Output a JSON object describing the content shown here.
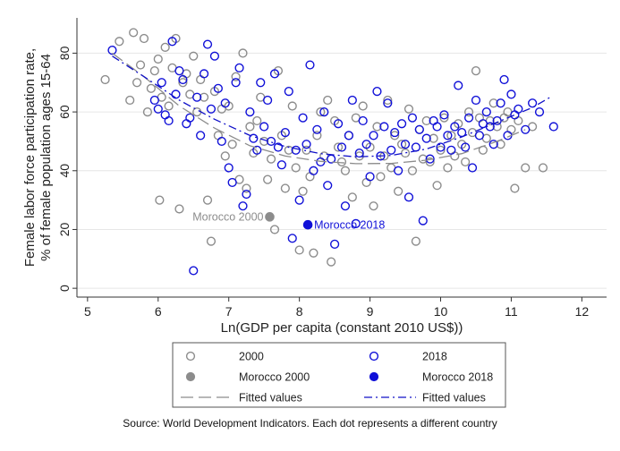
{
  "chart_data": {
    "type": "scatter",
    "title": "",
    "xlabel": "Ln(GDP per capita (constant 2010 US$))",
    "ylabel_line1": "Female labor force participation rate,",
    "ylabel_line2": "% of female population ages 15-64",
    "xlim": [
      4.85,
      12.35
    ],
    "ylim": [
      -3,
      92
    ],
    "xticks": [
      5,
      6,
      7,
      8,
      9,
      10,
      11,
      12
    ],
    "yticks": [
      0,
      20,
      40,
      60,
      80
    ],
    "grid": "horizontal",
    "legend_position": "bottom",
    "colors": {
      "series_2000": "#8c8c8c",
      "series_2018": "#1010d8",
      "fit_2000": "#8c8c8c",
      "fit_2018": "#1010c8"
    },
    "series": [
      {
        "name": "2000",
        "marker": "hollow-circle",
        "points": [
          [
            5.25,
            71
          ],
          [
            5.45,
            84
          ],
          [
            5.6,
            64
          ],
          [
            5.65,
            87
          ],
          [
            5.7,
            70
          ],
          [
            5.75,
            76
          ],
          [
            5.8,
            85
          ],
          [
            5.85,
            60
          ],
          [
            5.9,
            68
          ],
          [
            5.95,
            74
          ],
          [
            6.0,
            78
          ],
          [
            6.02,
            30
          ],
          [
            6.05,
            65
          ],
          [
            6.1,
            82
          ],
          [
            6.15,
            62
          ],
          [
            6.2,
            75
          ],
          [
            6.25,
            85
          ],
          [
            6.3,
            27
          ],
          [
            6.35,
            70
          ],
          [
            6.4,
            73
          ],
          [
            6.45,
            66
          ],
          [
            6.5,
            79
          ],
          [
            6.55,
            60
          ],
          [
            6.6,
            71
          ],
          [
            6.65,
            65
          ],
          [
            6.7,
            30
          ],
          [
            6.75,
            16
          ],
          [
            6.8,
            67
          ],
          [
            6.85,
            52
          ],
          [
            6.9,
            61
          ],
          [
            6.95,
            45
          ],
          [
            7.0,
            62
          ],
          [
            7.05,
            49
          ],
          [
            7.1,
            72
          ],
          [
            7.15,
            37
          ],
          [
            7.2,
            80
          ],
          [
            7.25,
            34
          ],
          [
            7.3,
            55
          ],
          [
            7.35,
            46
          ],
          [
            7.4,
            57
          ],
          [
            7.45,
            65
          ],
          [
            7.5,
            50
          ],
          [
            7.55,
            37
          ],
          [
            7.6,
            44
          ],
          [
            7.65,
            20
          ],
          [
            7.7,
            74
          ],
          [
            7.75,
            52
          ],
          [
            7.8,
            34
          ],
          [
            7.85,
            47
          ],
          [
            7.9,
            62
          ],
          [
            7.95,
            41
          ],
          [
            8.0,
            13
          ],
          [
            8.05,
            33
          ],
          [
            8.1,
            47
          ],
          [
            8.15,
            38
          ],
          [
            8.2,
            12
          ],
          [
            8.25,
            52
          ],
          [
            8.3,
            60
          ],
          [
            8.35,
            45
          ],
          [
            8.4,
            64
          ],
          [
            8.45,
            9
          ],
          [
            8.5,
            57
          ],
          [
            8.55,
            48
          ],
          [
            8.6,
            43
          ],
          [
            8.65,
            40
          ],
          [
            8.7,
            52
          ],
          [
            8.75,
            31
          ],
          [
            8.8,
            58
          ],
          [
            8.85,
            45
          ],
          [
            8.9,
            62
          ],
          [
            8.95,
            36
          ],
          [
            9.0,
            48
          ],
          [
            9.05,
            28
          ],
          [
            9.1,
            55
          ],
          [
            9.15,
            38
          ],
          [
            9.2,
            45
          ],
          [
            9.25,
            64
          ],
          [
            9.3,
            41
          ],
          [
            9.35,
            52
          ],
          [
            9.4,
            33
          ],
          [
            9.45,
            49
          ],
          [
            9.5,
            46
          ],
          [
            9.55,
            61
          ],
          [
            9.6,
            40
          ],
          [
            9.65,
            16
          ],
          [
            9.7,
            54
          ],
          [
            9.75,
            44
          ],
          [
            9.8,
            57
          ],
          [
            9.85,
            43
          ],
          [
            9.9,
            51
          ],
          [
            9.95,
            35
          ],
          [
            10.0,
            47
          ],
          [
            10.05,
            58
          ],
          [
            10.1,
            41
          ],
          [
            10.15,
            52
          ],
          [
            10.2,
            45
          ],
          [
            10.25,
            56
          ],
          [
            10.3,
            49
          ],
          [
            10.35,
            43
          ],
          [
            10.4,
            60
          ],
          [
            10.45,
            53
          ],
          [
            10.5,
            74
          ],
          [
            10.55,
            58
          ],
          [
            10.6,
            47
          ],
          [
            10.65,
            51
          ],
          [
            10.7,
            57
          ],
          [
            10.75,
            63
          ],
          [
            10.8,
            55
          ],
          [
            10.85,
            49
          ],
          [
            10.9,
            58
          ],
          [
            10.95,
            60
          ],
          [
            11.0,
            54
          ],
          [
            11.05,
            34
          ],
          [
            11.1,
            57
          ],
          [
            11.2,
            41
          ],
          [
            11.3,
            55
          ],
          [
            11.45,
            41
          ]
        ]
      },
      {
        "name": "2018",
        "marker": "hollow-circle",
        "points": [
          [
            5.35,
            81
          ],
          [
            5.95,
            64
          ],
          [
            6.0,
            61
          ],
          [
            6.05,
            70
          ],
          [
            6.1,
            59
          ],
          [
            6.15,
            57
          ],
          [
            6.2,
            84
          ],
          [
            6.25,
            66
          ],
          [
            6.3,
            74
          ],
          [
            6.35,
            71
          ],
          [
            6.4,
            56
          ],
          [
            6.45,
            58
          ],
          [
            6.5,
            6
          ],
          [
            6.55,
            65
          ],
          [
            6.6,
            52
          ],
          [
            6.65,
            73
          ],
          [
            6.7,
            83
          ],
          [
            6.75,
            61
          ],
          [
            6.8,
            79
          ],
          [
            6.85,
            68
          ],
          [
            6.9,
            50
          ],
          [
            6.95,
            63
          ],
          [
            7.0,
            41
          ],
          [
            7.05,
            36
          ],
          [
            7.1,
            70
          ],
          [
            7.15,
            75
          ],
          [
            7.2,
            28
          ],
          [
            7.25,
            32
          ],
          [
            7.3,
            60
          ],
          [
            7.35,
            51
          ],
          [
            7.4,
            47
          ],
          [
            7.45,
            70
          ],
          [
            7.5,
            55
          ],
          [
            7.55,
            64
          ],
          [
            7.6,
            50
          ],
          [
            7.65,
            73
          ],
          [
            7.7,
            48
          ],
          [
            7.75,
            42
          ],
          [
            7.8,
            53
          ],
          [
            7.85,
            67
          ],
          [
            7.9,
            17
          ],
          [
            7.95,
            47
          ],
          [
            8.0,
            30
          ],
          [
            8.05,
            58
          ],
          [
            8.1,
            49
          ],
          [
            8.15,
            76
          ],
          [
            8.2,
            40
          ],
          [
            8.25,
            54
          ],
          [
            8.3,
            43
          ],
          [
            8.35,
            60
          ],
          [
            8.4,
            35
          ],
          [
            8.45,
            44
          ],
          [
            8.5,
            15
          ],
          [
            8.55,
            56
          ],
          [
            8.6,
            48
          ],
          [
            8.65,
            28
          ],
          [
            8.7,
            52
          ],
          [
            8.75,
            64
          ],
          [
            8.8,
            22
          ],
          [
            8.85,
            46
          ],
          [
            8.9,
            57
          ],
          [
            8.95,
            49
          ],
          [
            9.0,
            38
          ],
          [
            9.05,
            52
          ],
          [
            9.1,
            67
          ],
          [
            9.15,
            45
          ],
          [
            9.2,
            55
          ],
          [
            9.25,
            63
          ],
          [
            9.3,
            47
          ],
          [
            9.35,
            53
          ],
          [
            9.4,
            40
          ],
          [
            9.45,
            56
          ],
          [
            9.5,
            49
          ],
          [
            9.55,
            31
          ],
          [
            9.6,
            58
          ],
          [
            9.65,
            48
          ],
          [
            9.7,
            54
          ],
          [
            9.75,
            23
          ],
          [
            9.8,
            51
          ],
          [
            9.85,
            44
          ],
          [
            9.9,
            57
          ],
          [
            9.95,
            55
          ],
          [
            10.0,
            48
          ],
          [
            10.05,
            59
          ],
          [
            10.1,
            52
          ],
          [
            10.15,
            47
          ],
          [
            10.2,
            55
          ],
          [
            10.25,
            69
          ],
          [
            10.3,
            53
          ],
          [
            10.35,
            48
          ],
          [
            10.4,
            58
          ],
          [
            10.45,
            41
          ],
          [
            10.5,
            64
          ],
          [
            10.55,
            52
          ],
          [
            10.6,
            56
          ],
          [
            10.65,
            60
          ],
          [
            10.7,
            55
          ],
          [
            10.75,
            49
          ],
          [
            10.8,
            57
          ],
          [
            10.85,
            63
          ],
          [
            10.9,
            71
          ],
          [
            10.95,
            52
          ],
          [
            11.0,
            66
          ],
          [
            11.05,
            59
          ],
          [
            11.1,
            61
          ],
          [
            11.2,
            54
          ],
          [
            11.3,
            63
          ],
          [
            11.4,
            60
          ],
          [
            11.6,
            55
          ]
        ]
      },
      {
        "name": "Morocco 2000",
        "marker": "filled-circle",
        "points": [
          [
            7.58,
            24.3
          ]
        ]
      },
      {
        "name": "Morocco 2018",
        "marker": "filled-circle",
        "points": [
          [
            8.12,
            21.6
          ]
        ]
      },
      {
        "name": "Fitted values",
        "line": "long-dash",
        "color_key": "fit_2000",
        "points": [
          [
            5.35,
            80
          ],
          [
            5.8,
            72
          ],
          [
            6.3,
            62
          ],
          [
            6.8,
            54.5
          ],
          [
            7.3,
            48.5
          ],
          [
            7.8,
            45
          ],
          [
            8.3,
            43.2
          ],
          [
            8.8,
            42.4
          ],
          [
            9.3,
            42.5
          ],
          [
            9.8,
            43.6
          ],
          [
            10.3,
            45.8
          ],
          [
            10.8,
            50
          ],
          [
            11.2,
            54
          ]
        ]
      },
      {
        "name": "Fitted values",
        "line": "dash-dot",
        "color_key": "fit_2018",
        "points": [
          [
            5.35,
            79
          ],
          [
            5.8,
            72
          ],
          [
            6.3,
            64
          ],
          [
            6.8,
            57.5
          ],
          [
            7.3,
            52
          ],
          [
            7.8,
            48.2
          ],
          [
            8.3,
            45.8
          ],
          [
            8.8,
            44.7
          ],
          [
            9.3,
            45.2
          ],
          [
            9.8,
            47.4
          ],
          [
            10.3,
            51.5
          ],
          [
            10.8,
            56.5
          ],
          [
            11.3,
            61.5
          ],
          [
            11.55,
            65
          ]
        ]
      }
    ],
    "annotations": [
      {
        "text": "Morocco 2000",
        "at": [
          7.58,
          24.3
        ],
        "anchor": "left-of-point",
        "color_key": "series_2000"
      },
      {
        "text": "Morocco 2018",
        "at": [
          8.12,
          21.6
        ],
        "anchor": "right-of-point",
        "color_key": "series_2018"
      }
    ],
    "legend": {
      "items": [
        {
          "label": "2000",
          "symbol": "hollow-circle",
          "color_key": "series_2000"
        },
        {
          "label": "2018",
          "symbol": "hollow-circle",
          "color_key": "series_2018"
        },
        {
          "label": "Morocco 2000",
          "symbol": "filled-circle",
          "color_key": "series_2000"
        },
        {
          "label": "Morocco 2018",
          "symbol": "filled-circle",
          "color_key": "series_2018"
        },
        {
          "label": "Fitted values",
          "symbol": "long-dash",
          "color_key": "fit_2000"
        },
        {
          "label": "Fitted values",
          "symbol": "dash-dot",
          "color_key": "fit_2018"
        }
      ]
    },
    "note": "Source: World Development Indicators. Each dot represents a different country"
  }
}
